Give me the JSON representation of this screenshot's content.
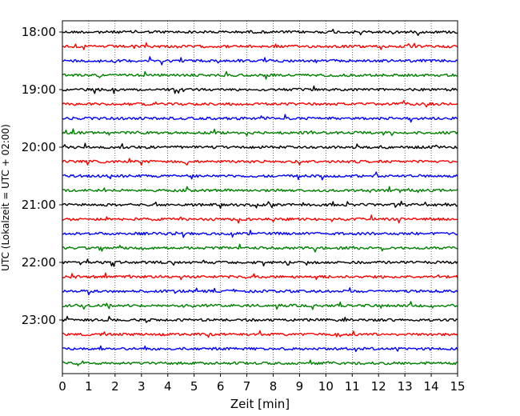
{
  "chart_data": {
    "type": "line",
    "subtype": "helicorder",
    "xlabel": "Zeit  [min]",
    "ylabel": "UTC (Lokalzeit = UTC + 02:00)",
    "xlim": [
      0,
      15
    ],
    "x_ticks": [
      0,
      1,
      2,
      3,
      4,
      5,
      6,
      7,
      8,
      9,
      10,
      11,
      12,
      13,
      14,
      15
    ],
    "y_tick_labels": [
      "18:00",
      "19:00",
      "20:00",
      "21:00",
      "22:00",
      "23:00"
    ],
    "grid": "vertical dotted",
    "trace_interval_min": 15,
    "trace_color_cycle": [
      "#000000",
      "#ff0000",
      "#0000ff",
      "#008000"
    ],
    "traces": [
      {
        "start": "18:00",
        "color": "#000000"
      },
      {
        "start": "18:15",
        "color": "#ff0000"
      },
      {
        "start": "18:30",
        "color": "#0000ff"
      },
      {
        "start": "18:45",
        "color": "#008000"
      },
      {
        "start": "19:00",
        "color": "#000000"
      },
      {
        "start": "19:15",
        "color": "#ff0000"
      },
      {
        "start": "19:30",
        "color": "#0000ff"
      },
      {
        "start": "19:45",
        "color": "#008000"
      },
      {
        "start": "20:00",
        "color": "#000000"
      },
      {
        "start": "20:15",
        "color": "#ff0000"
      },
      {
        "start": "20:30",
        "color": "#0000ff"
      },
      {
        "start": "20:45",
        "color": "#008000"
      },
      {
        "start": "21:00",
        "color": "#000000"
      },
      {
        "start": "21:15",
        "color": "#ff0000"
      },
      {
        "start": "21:30",
        "color": "#0000ff"
      },
      {
        "start": "21:45",
        "color": "#008000"
      },
      {
        "start": "22:00",
        "color": "#000000"
      },
      {
        "start": "22:15",
        "color": "#ff0000"
      },
      {
        "start": "22:30",
        "color": "#0000ff"
      },
      {
        "start": "22:45",
        "color": "#008000"
      },
      {
        "start": "23:00",
        "color": "#000000"
      },
      {
        "start": "23:15",
        "color": "#ff0000"
      },
      {
        "start": "23:30",
        "color": "#0000ff"
      },
      {
        "start": "23:45",
        "color": "#008000"
      }
    ]
  }
}
